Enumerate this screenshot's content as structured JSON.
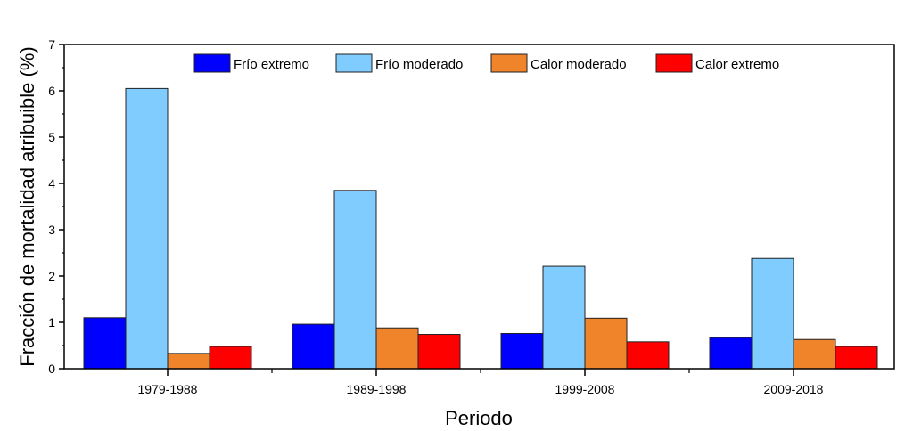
{
  "chart_data": {
    "type": "bar",
    "title": "",
    "xlabel": "Periodo",
    "ylabel": "Fracción de mortalidad atribuible (%)",
    "ylim": [
      0,
      7
    ],
    "yticks": [
      "0",
      "1",
      "2",
      "3",
      "4",
      "5",
      "6",
      "7"
    ],
    "categories": [
      "1979-1988",
      "1989-1998",
      "1999-2008",
      "2009-2018"
    ],
    "legend_position": "top",
    "grid": false,
    "series": [
      {
        "name": "Frío extremo",
        "color": "#0000ff",
        "values": [
          1.1,
          0.96,
          0.76,
          0.67
        ]
      },
      {
        "name": "Frío moderado",
        "color": "#80ccff",
        "values": [
          6.05,
          3.85,
          2.21,
          2.38
        ]
      },
      {
        "name": "Calor moderado",
        "color": "#ef842b",
        "values": [
          0.33,
          0.88,
          1.09,
          0.63
        ]
      },
      {
        "name": "Calor extremo",
        "color": "#ff0000",
        "values": [
          0.48,
          0.74,
          0.58,
          0.48
        ]
      }
    ]
  }
}
